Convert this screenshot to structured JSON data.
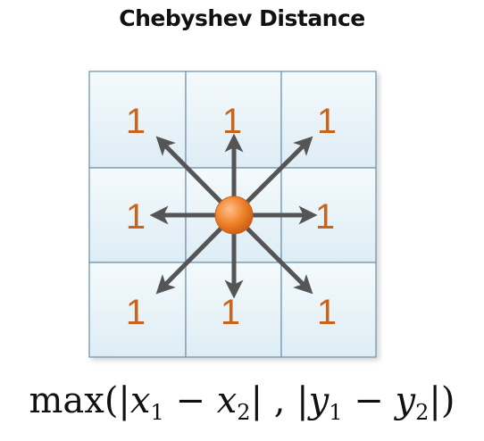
{
  "title": "Chebyshev Distance",
  "grid": {
    "cells": [
      {
        "label": "1"
      },
      {
        "label": "1"
      },
      {
        "label": "1"
      },
      {
        "label": "1"
      },
      {
        "label": ""
      },
      {
        "label": "1"
      },
      {
        "label": "1"
      },
      {
        "label": "1"
      },
      {
        "label": "1"
      }
    ]
  },
  "formula": {
    "fn": "max",
    "open": "(|",
    "x1": "x",
    "x1_sub": "1",
    "minus1": " − ",
    "x2": "x",
    "x2_sub": "2",
    "mid": "| , |",
    "y1": "y",
    "y1_sub": "1",
    "minus2": " − ",
    "y2": "y",
    "y2_sub": "2",
    "close": "|)"
  },
  "colors": {
    "cell_fill": "#e8f3f8",
    "grid_line": "#6a8fa8",
    "label": "#c8641c",
    "arrow": "#555555",
    "dot": "#f0822a"
  }
}
